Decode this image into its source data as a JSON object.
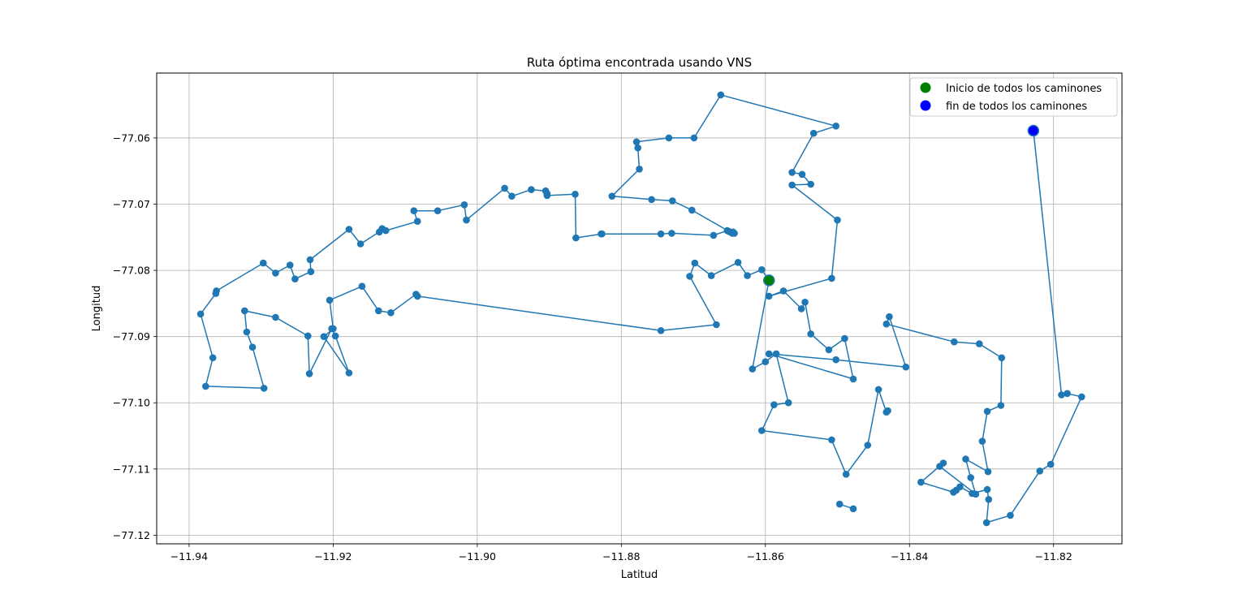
{
  "chart_data": {
    "type": "line",
    "title": "Ruta óptima encontrada usando VNS",
    "xlabel": "Latitud",
    "ylabel": "Longitud",
    "xlim": [
      -11.9445,
      -11.8105
    ],
    "ylim": [
      -77.1213,
      -77.0502
    ],
    "x_ticks": [
      -11.94,
      -11.92,
      -11.9,
      -11.88,
      -11.86,
      -11.84,
      -11.82
    ],
    "x_tick_labels": [
      "−11.94",
      "−11.92",
      "−11.90",
      "−11.88",
      "−11.86",
      "−11.84",
      "−11.82"
    ],
    "y_ticks": [
      -77.06,
      -77.07,
      -77.08,
      -77.09,
      -77.1,
      -77.11,
      -77.12
    ],
    "y_tick_labels": [
      "−77.06",
      "−77.07",
      "−77.08",
      "−77.09",
      "−77.10",
      "−77.11",
      "−77.12"
    ],
    "grid": true,
    "legend_position": "top-right",
    "colors": {
      "route": "#1f77b4",
      "start": "#008000",
      "end": "#0000ff"
    },
    "route": {
      "x": [
        -11.8595,
        -11.8605,
        -11.8625,
        -11.8638,
        -11.8675,
        -11.8698,
        -11.8705,
        -11.8668,
        -11.8745,
        -11.9083,
        -11.9085,
        -11.912,
        -11.9137,
        -11.916,
        -11.9205,
        -11.92,
        -11.9213,
        -11.9178,
        -11.9197,
        -11.9202,
        -11.9233,
        -11.9235,
        -11.928,
        -11.9323,
        -11.932,
        -11.9312,
        -11.9296,
        -11.9377,
        -11.9367,
        -11.9384,
        -11.9363,
        -11.9362,
        -11.9297,
        -11.928,
        -11.926,
        -11.9253,
        -11.9231,
        -11.9232,
        -11.9178,
        -11.9162,
        -11.9136,
        -11.9132,
        -11.9127,
        -11.9083,
        -11.9088,
        -11.9055,
        -11.9018,
        -11.9015,
        -11.8962,
        -11.8952,
        -11.8925,
        -11.8905,
        -11.8903,
        -11.8903,
        -11.8864,
        -11.8863,
        -11.8828,
        -11.8827,
        -11.8745,
        -11.873,
        -11.8672,
        -11.8653,
        -11.8651,
        -11.8649,
        -11.8645,
        -11.8643,
        -11.8646,
        -11.8702,
        -11.8729,
        -11.8758,
        -11.8813,
        -11.8775,
        -11.8777,
        -11.8779,
        -11.8734,
        -11.8699,
        -11.8662,
        -11.8502,
        -11.8533,
        -11.8563,
        -11.8549,
        -11.8537,
        -11.8563,
        -11.85,
        -11.8508,
        -11.8595,
        -11.8575,
        -11.855,
        -11.8545,
        -11.8537,
        -11.8512,
        -11.849,
        -11.8478,
        -11.8595,
        -11.8502,
        -11.8405,
        -11.8428,
        -11.8432,
        -11.8338,
        -11.8303,
        -11.8272,
        -11.8273,
        -11.8292,
        -11.8299,
        -11.8291,
        -11.8322,
        -11.8315,
        -11.8308,
        -11.8358,
        -11.8353,
        -11.8384,
        -11.8339,
        -11.8335,
        -11.833,
        -11.8313,
        -11.8292,
        -11.829,
        -11.8293,
        -11.826,
        -11.8219,
        -11.8204,
        -11.8161,
        -11.8181,
        -11.8189,
        -11.8228
      ],
      "y": [
        -77.0815,
        -77.0799,
        -77.0808,
        -77.0788,
        -77.0808,
        -77.0789,
        -77.0809,
        -77.0882,
        -77.0891,
        -77.0839,
        -77.0836,
        -77.0864,
        -77.0861,
        -77.0824,
        -77.0845,
        -77.0888,
        -77.09,
        -77.0955,
        -77.0899,
        -77.0888,
        -77.0956,
        -77.0899,
        -77.0871,
        -77.0861,
        -77.0893,
        -77.0916,
        -77.0978,
        -77.0975,
        -77.0932,
        -77.0866,
        -77.0835,
        -77.0831,
        -77.0789,
        -77.0804,
        -77.0792,
        -77.0813,
        -77.0802,
        -77.0784,
        -77.0738,
        -77.076,
        -77.0742,
        -77.0737,
        -77.074,
        -77.0726,
        -77.071,
        -77.071,
        -77.0701,
        -77.0724,
        -77.0676,
        -77.0688,
        -77.0678,
        -77.068,
        -77.0684,
        -77.0687,
        -77.0685,
        -77.0751,
        -77.0745,
        -77.0745,
        -77.0745,
        -77.0744,
        -77.0747,
        -77.074,
        -77.0741,
        -77.0742,
        -77.0742,
        -77.0744,
        -77.0744,
        -77.0709,
        -77.0695,
        -77.0693,
        -77.0688,
        -77.0647,
        -77.0615,
        -77.0606,
        -77.06,
        -77.06,
        -77.0535,
        -77.0582,
        -77.0593,
        -77.0652,
        -77.0655,
        -77.067,
        -77.0671,
        -77.0724,
        -77.0812,
        -77.0839,
        -77.0831,
        -77.0858,
        -77.0848,
        -77.0896,
        -77.092,
        -77.0903,
        -77.0964,
        -77.0926,
        -77.0935,
        -77.0946,
        -77.087,
        -77.0881,
        -77.0908,
        -77.0911,
        -77.0932,
        -77.1004,
        -77.1013,
        -77.1058,
        -77.1104,
        -77.1085,
        -77.1113,
        -77.1138,
        -77.1096,
        -77.1091,
        -77.112,
        -77.1135,
        -77.1132,
        -77.1127,
        -77.1137,
        -77.1131,
        -77.1146,
        -77.1181,
        -77.117,
        -77.1103,
        -77.1093,
        -77.0991,
        -77.0986,
        -77.0988,
        -77.0589
      ],
      "secondary": [
        {
          "x": [
            -11.8595,
            -11.8618,
            -11.86,
            -11.8585,
            -11.8568,
            -11.8588,
            -11.8605,
            -11.8508,
            -11.8488,
            -11.8458,
            -11.8443,
            -11.8432,
            -11.843
          ],
          "y": [
            -77.0815,
            -77.0949,
            -77.0938,
            -77.0926,
            -77.1,
            -77.1003,
            -77.1042,
            -77.1056,
            -77.1108,
            -77.1064,
            -77.098,
            -77.1014,
            -77.1012
          ]
        },
        {
          "x": [
            -11.8497,
            -11.8478
          ],
          "y": [
            -77.1153,
            -77.116
          ]
        }
      ]
    },
    "legend": [
      {
        "label": "Inicio de todos los caminones",
        "color": "#008000"
      },
      {
        "label": "fin de todos los caminones",
        "color": "#0000ff"
      }
    ],
    "start_point": {
      "x": -11.8595,
      "y": -77.0815
    },
    "end_point": {
      "x": -11.8228,
      "y": -77.0589
    }
  }
}
